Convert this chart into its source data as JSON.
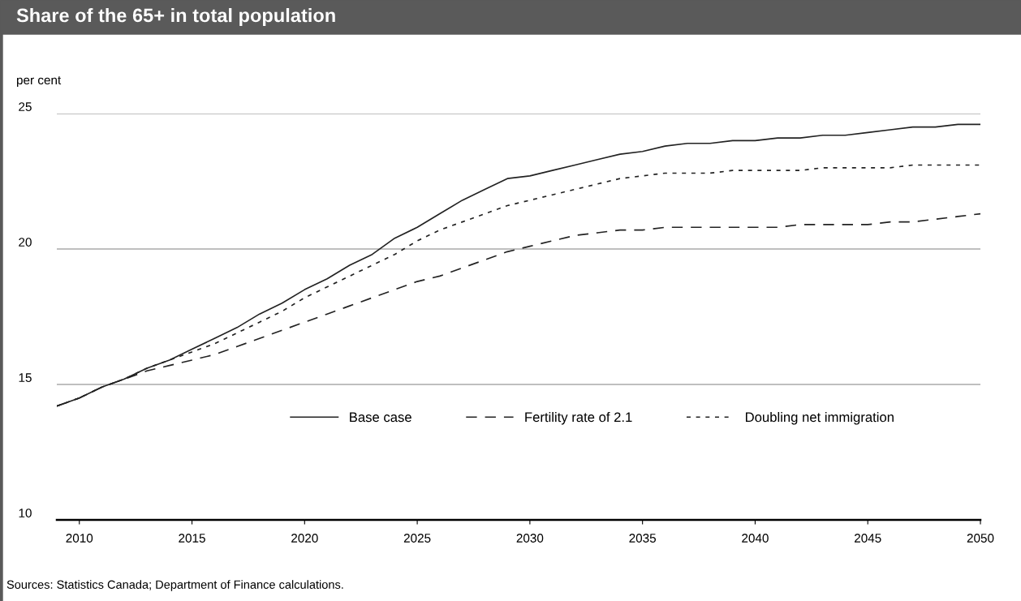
{
  "chart_data": {
    "type": "line",
    "title": "Share of the 65+ in total population",
    "ylabel": "per cent",
    "x": [
      2009,
      2010,
      2011,
      2012,
      2013,
      2014,
      2015,
      2016,
      2017,
      2018,
      2019,
      2020,
      2021,
      2022,
      2023,
      2024,
      2025,
      2026,
      2027,
      2028,
      2029,
      2030,
      2031,
      2032,
      2033,
      2034,
      2035,
      2036,
      2037,
      2038,
      2039,
      2040,
      2041,
      2042,
      2043,
      2044,
      2045,
      2046,
      2047,
      2048,
      2049,
      2050
    ],
    "series": [
      {
        "name": "Base case",
        "color": "#222222",
        "line_style": "solid",
        "values": [
          14.2,
          14.5,
          14.9,
          15.2,
          15.6,
          15.9,
          16.3,
          16.7,
          17.1,
          17.6,
          18.0,
          18.5,
          18.9,
          19.4,
          19.8,
          20.4,
          20.8,
          21.3,
          21.8,
          22.2,
          22.6,
          22.7,
          22.9,
          23.1,
          23.3,
          23.5,
          23.6,
          23.8,
          23.9,
          23.9,
          24.0,
          24.0,
          24.1,
          24.1,
          24.2,
          24.2,
          24.3,
          24.4,
          24.5,
          24.5,
          24.6,
          24.6
        ]
      },
      {
        "name": "Fertility rate of 2.1",
        "color": "#222222",
        "line_style": "dashed",
        "values": [
          14.2,
          14.5,
          14.9,
          15.2,
          15.5,
          15.7,
          15.9,
          16.1,
          16.4,
          16.7,
          17.0,
          17.3,
          17.6,
          17.9,
          18.2,
          18.5,
          18.8,
          19.0,
          19.3,
          19.6,
          19.9,
          20.1,
          20.3,
          20.5,
          20.6,
          20.7,
          20.7,
          20.8,
          20.8,
          20.8,
          20.8,
          20.8,
          20.8,
          20.9,
          20.9,
          20.9,
          20.9,
          21.0,
          21.0,
          21.1,
          21.2,
          21.3
        ]
      },
      {
        "name": "Doubling net immigration",
        "color": "#222222",
        "line_style": "dotted",
        "values": [
          14.2,
          14.5,
          14.9,
          15.2,
          15.6,
          15.9,
          16.2,
          16.5,
          16.9,
          17.3,
          17.7,
          18.2,
          18.6,
          19.0,
          19.4,
          19.8,
          20.3,
          20.7,
          21.0,
          21.3,
          21.6,
          21.8,
          22.0,
          22.2,
          22.4,
          22.6,
          22.7,
          22.8,
          22.8,
          22.8,
          22.9,
          22.9,
          22.9,
          22.9,
          23.0,
          23.0,
          23.0,
          23.0,
          23.1,
          23.1,
          23.1,
          23.1
        ]
      }
    ],
    "xlim": [
      2009,
      2050
    ],
    "xticks": [
      2010,
      2015,
      2020,
      2025,
      2030,
      2035,
      2040,
      2045,
      2050
    ],
    "ylim": [
      10,
      25
    ],
    "yticks": [
      10,
      15,
      20,
      25
    ],
    "grid": "y",
    "legend": "bottom",
    "marker": "none",
    "annotations": [
      "Sources: Statistics Canada; Department of Finance calculations."
    ]
  }
}
